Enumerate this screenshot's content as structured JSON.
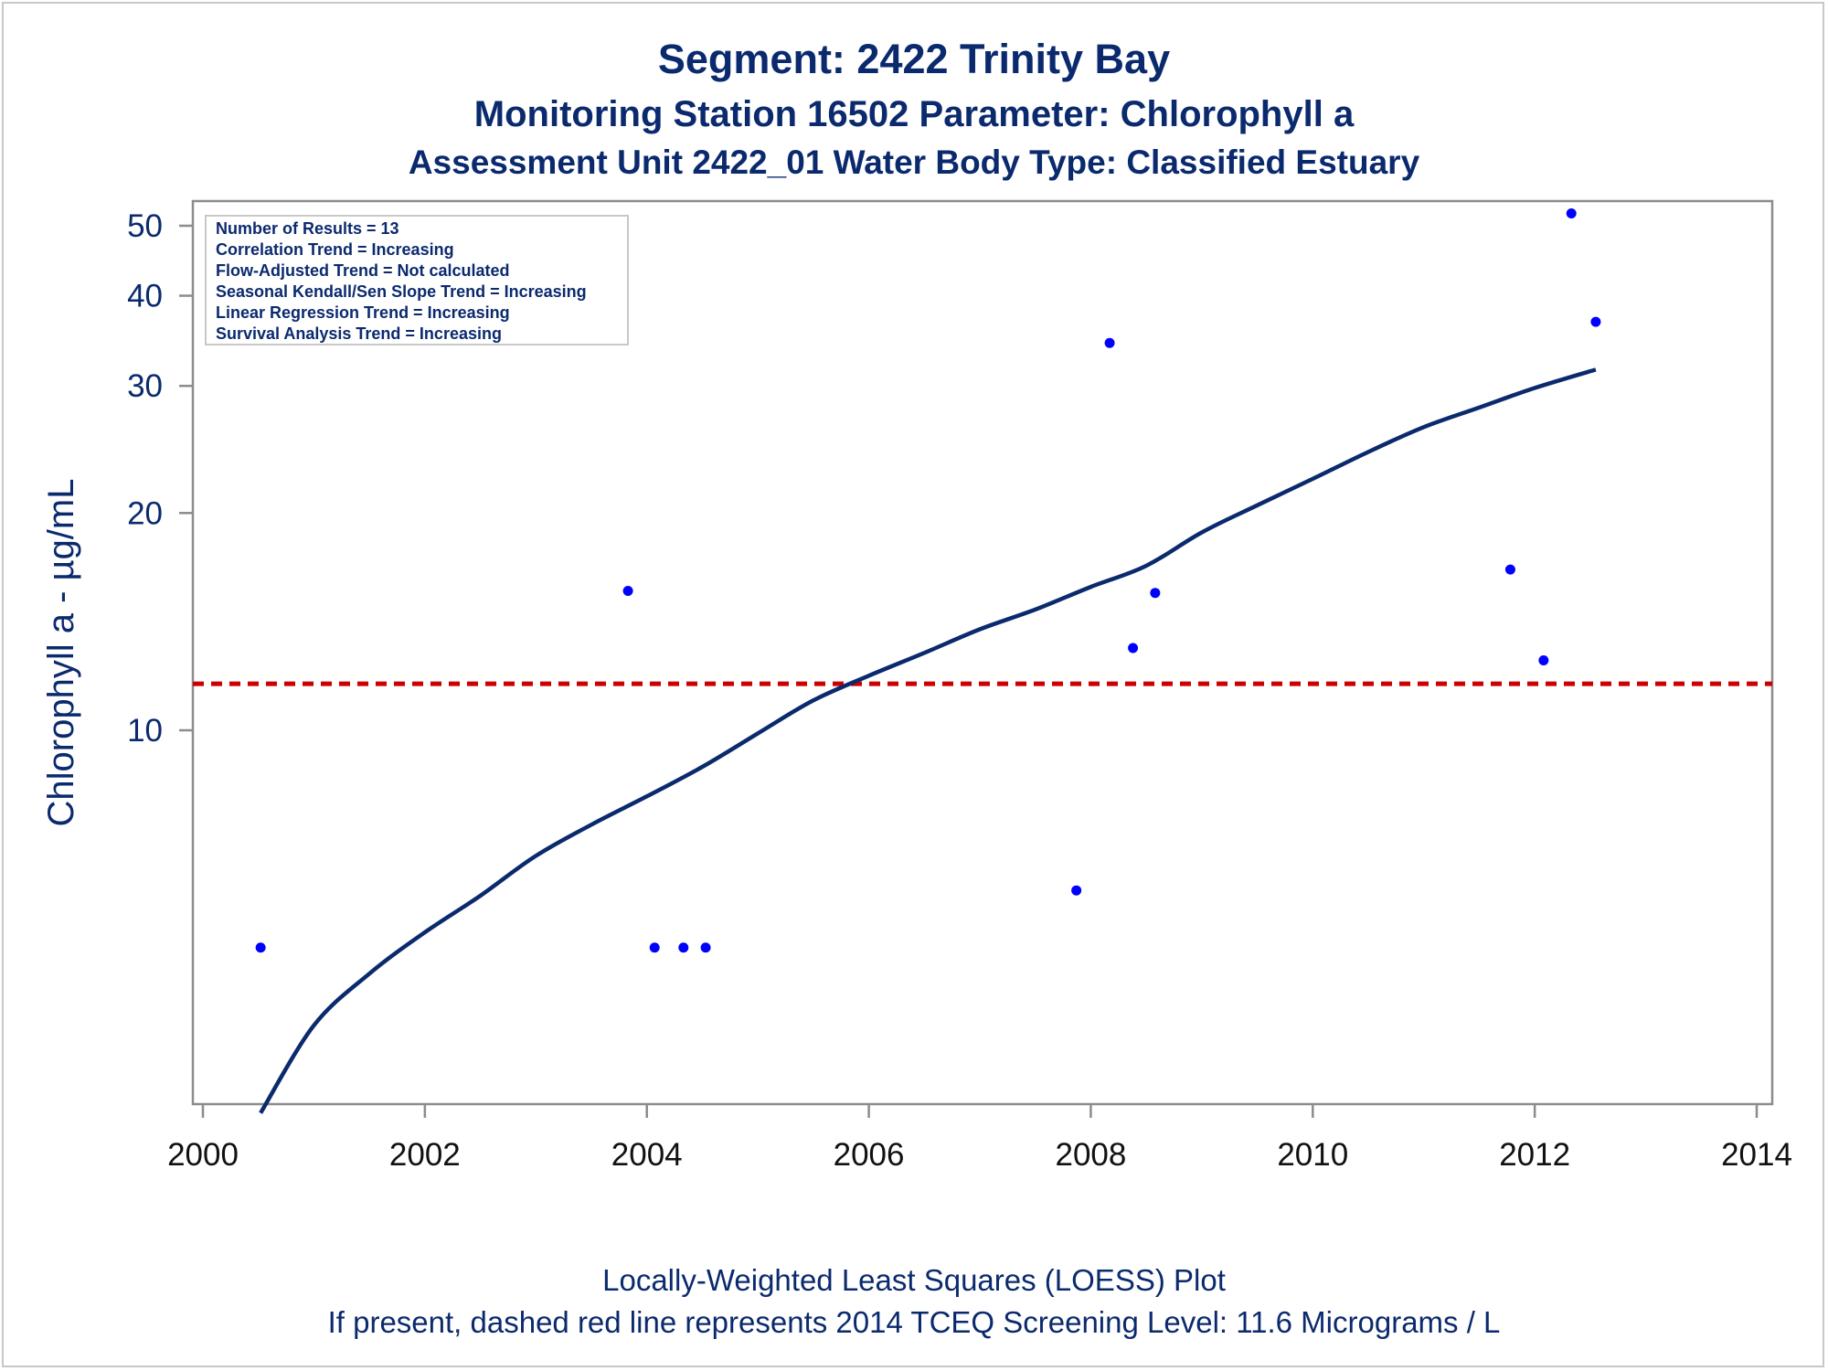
{
  "titles": {
    "line1": "Segment: 2422  Trinity Bay",
    "line2": "Monitoring Station 16502 Parameter: Chlorophyll a",
    "line3": "Assessment Unit 2422_01   Water Body Type: Classified Estuary"
  },
  "footnotes": {
    "line1": "Locally-Weighted Least Squares (LOESS) Plot",
    "line2": "If present, dashed red line represents 2014 TCEQ Screening Level: 11.6 Micrograms / L"
  },
  "stats_box": [
    "Number of Results = 13",
    "Correlation Trend = Increasing",
    "Flow-Adjusted Trend = Not calculated",
    "Seasonal Kendall/Sen Slope Trend = Increasing",
    "Linear Regression Trend = Increasing",
    "Survival Analysis Trend = Increasing"
  ],
  "colors": {
    "title": "#0b2a6e",
    "x_tick_text": "#111111",
    "points": "#0000ff",
    "loess_line": "#0b2a6e",
    "screening_line": "#cc0000",
    "axis": "#8c8c8c"
  },
  "chart_data": {
    "type": "scatter",
    "xlabel": "",
    "ylabel": "Chlorophyll a -  µg/mL",
    "xlim": [
      2000,
      2014
    ],
    "ylim": [
      3,
      55
    ],
    "y_scale": "log",
    "x_ticks": [
      2000,
      2002,
      2004,
      2006,
      2008,
      2010,
      2012,
      2014
    ],
    "y_ticks": [
      10,
      20,
      30,
      40,
      50
    ],
    "grid": false,
    "points": [
      {
        "x": 2000.52,
        "y": 5.0
      },
      {
        "x": 2003.83,
        "y": 15.6
      },
      {
        "x": 2004.07,
        "y": 5.0
      },
      {
        "x": 2004.33,
        "y": 5.0
      },
      {
        "x": 2004.53,
        "y": 5.0
      },
      {
        "x": 2007.87,
        "y": 6.0
      },
      {
        "x": 2008.17,
        "y": 34.4
      },
      {
        "x": 2008.38,
        "y": 13.0
      },
      {
        "x": 2008.58,
        "y": 15.5
      },
      {
        "x": 2011.78,
        "y": 16.7
      },
      {
        "x": 2012.08,
        "y": 12.5
      },
      {
        "x": 2012.33,
        "y": 52.0
      },
      {
        "x": 2012.55,
        "y": 36.8
      }
    ],
    "loess_curve": [
      {
        "x": 2000.52,
        "y": 2.95
      },
      {
        "x": 2001.0,
        "y": 3.9
      },
      {
        "x": 2001.5,
        "y": 4.6
      },
      {
        "x": 2002.0,
        "y": 5.25
      },
      {
        "x": 2002.5,
        "y": 5.9
      },
      {
        "x": 2003.0,
        "y": 6.7
      },
      {
        "x": 2003.5,
        "y": 7.4
      },
      {
        "x": 2004.0,
        "y": 8.1
      },
      {
        "x": 2004.5,
        "y": 8.9
      },
      {
        "x": 2005.0,
        "y": 9.9
      },
      {
        "x": 2005.5,
        "y": 11.0
      },
      {
        "x": 2006.0,
        "y": 11.9
      },
      {
        "x": 2006.5,
        "y": 12.8
      },
      {
        "x": 2007.0,
        "y": 13.8
      },
      {
        "x": 2007.5,
        "y": 14.7
      },
      {
        "x": 2008.0,
        "y": 15.8
      },
      {
        "x": 2008.5,
        "y": 16.9
      },
      {
        "x": 2009.0,
        "y": 18.8
      },
      {
        "x": 2009.5,
        "y": 20.5
      },
      {
        "x": 2010.0,
        "y": 22.3
      },
      {
        "x": 2010.5,
        "y": 24.3
      },
      {
        "x": 2011.0,
        "y": 26.3
      },
      {
        "x": 2011.5,
        "y": 28.0
      },
      {
        "x": 2012.0,
        "y": 29.8
      },
      {
        "x": 2012.55,
        "y": 31.6
      }
    ],
    "reference_line": {
      "y": 11.6
    }
  }
}
